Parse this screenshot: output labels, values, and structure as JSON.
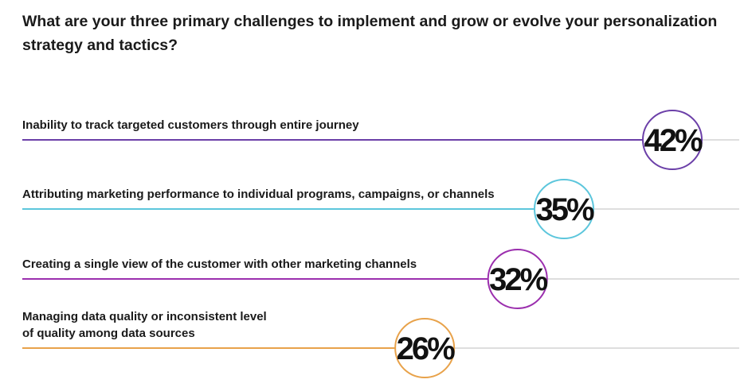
{
  "title": "What are your three primary challenges to implement and grow or evolve your personalization strategy and tactics?",
  "colors": {
    "purple": "#6b3fa8",
    "cyan": "#5cc6dc",
    "magenta": "#9b2fae",
    "orange": "#e8a24a",
    "track": "#d4d4d4"
  },
  "chart_data": {
    "type": "bar",
    "xlim": [
      0,
      42
    ],
    "categories": [
      "Inability to track targeted customers through entire journey",
      "Attributing marketing performance to individual programs, campaigns, or channels",
      "Creating a single view of the customer with other marketing channels",
      "Managing data quality or inconsistent level of quality among data sources"
    ],
    "category_lines": [
      [
        "Inability to track targeted customers through entire journey"
      ],
      [
        "Attributing marketing performance to individual programs, campaigns, or channels"
      ],
      [
        "Creating a single view of the customer with other marketing channels"
      ],
      [
        "Managing data quality or inconsistent level",
        "of quality among data sources"
      ]
    ],
    "values": [
      42,
      35,
      32,
      26
    ],
    "value_labels": [
      "42%",
      "35%",
      "32%",
      "26%"
    ],
    "colors": [
      "#6b3fa8",
      "#5cc6dc",
      "#9b2fae",
      "#e8a24a"
    ]
  }
}
